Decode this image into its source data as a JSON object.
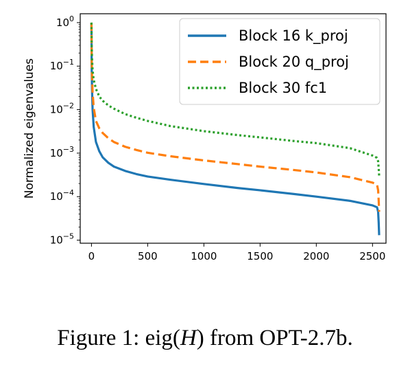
{
  "chart_data": {
    "type": "line",
    "ylabel": "Normalized eigenvalues",
    "xlabel": "",
    "yscale": "log",
    "xlim": [
      -100,
      2620
    ],
    "ylim": [
      8.5e-06,
      1.6
    ],
    "xticks": [
      0,
      500,
      1000,
      1500,
      2000,
      2500
    ],
    "yticks": [
      {
        "value": 1,
        "base": "10",
        "exp": "0"
      },
      {
        "value": 0.1,
        "base": "10",
        "exp": "−1"
      },
      {
        "value": 0.01,
        "base": "10",
        "exp": "−2"
      },
      {
        "value": 0.001,
        "base": "10",
        "exp": "−3"
      },
      {
        "value": 0.0001,
        "base": "10",
        "exp": "−4"
      },
      {
        "value": 1e-05,
        "base": "10",
        "exp": "−5"
      }
    ],
    "legend_position": "upper-right",
    "series": [
      {
        "name": "Block 16 k_proj",
        "color": "#1f77b4",
        "style": "solid",
        "x": [
          0,
          2,
          5,
          10,
          20,
          40,
          70,
          100,
          150,
          200,
          300,
          400,
          500,
          700,
          1000,
          1300,
          1500,
          1800,
          2000,
          2300,
          2500,
          2540,
          2550,
          2555,
          2559
        ],
        "y": [
          1.0,
          0.1,
          0.03,
          0.01,
          0.004,
          0.0018,
          0.0011,
          0.0008,
          0.0006,
          0.00049,
          0.00039,
          0.00033,
          0.00029,
          0.000245,
          0.000195,
          0.000158,
          0.00014,
          0.000115,
          0.0001,
          8e-05,
          6.3e-05,
          5.7e-05,
          4.5e-05,
          2.5e-05,
          1.3e-05
        ]
      },
      {
        "name": "Block 20 q_proj",
        "color": "#ff7f0e",
        "style": "dashed",
        "x": [
          0,
          2,
          5,
          10,
          20,
          40,
          70,
          100,
          150,
          200,
          300,
          400,
          500,
          700,
          1000,
          1300,
          1500,
          1800,
          2000,
          2300,
          2500,
          2540,
          2550,
          2555,
          2559
        ],
        "y": [
          1.0,
          0.15,
          0.06,
          0.025,
          0.011,
          0.0055,
          0.0037,
          0.0029,
          0.0022,
          0.0018,
          0.0014,
          0.00118,
          0.00102,
          0.00085,
          0.00068,
          0.00056,
          0.00049,
          0.00041,
          0.00036,
          0.00028,
          0.00021,
          0.00019,
          0.00014,
          8e-05,
          4.5e-05
        ]
      },
      {
        "name": "Block 30 fc1",
        "color": "#2ca02c",
        "style": "dotted",
        "x": [
          0,
          2,
          5,
          10,
          20,
          40,
          70,
          100,
          150,
          200,
          300,
          400,
          500,
          700,
          1000,
          1300,
          1500,
          1800,
          2000,
          2300,
          2500,
          2540,
          2550,
          2555,
          2559
        ],
        "y": [
          1.0,
          0.3,
          0.15,
          0.08,
          0.048,
          0.03,
          0.02,
          0.016,
          0.0125,
          0.0105,
          0.0079,
          0.0065,
          0.0055,
          0.0042,
          0.0032,
          0.0026,
          0.0023,
          0.0019,
          0.0017,
          0.0013,
          0.00088,
          0.00078,
          0.00065,
          0.00045,
          0.0003
        ]
      }
    ]
  },
  "caption": {
    "prefix": "Figure 1: ",
    "func": "eig",
    "open": "(",
    "var": "H",
    "close": ")",
    "suffix": " from OPT-2.7b."
  }
}
